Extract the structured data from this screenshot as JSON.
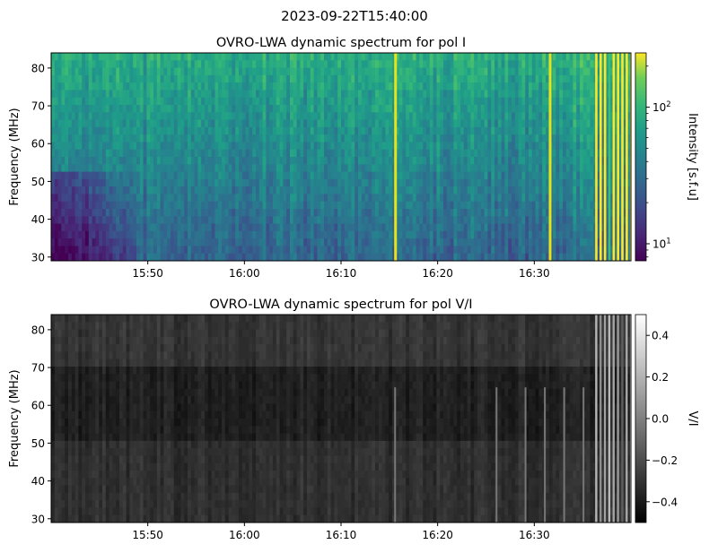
{
  "suptitle": "2023-09-22T15:40:00",
  "chart_data": [
    {
      "type": "heatmap",
      "title": "OVRO-LWA dynamic spectrum for pol I",
      "ylabel": "Frequency (MHz)",
      "xlabel": "",
      "x_ticks": [
        "15:50",
        "16:00",
        "16:10",
        "16:20",
        "16:30"
      ],
      "x_tick_minutes": [
        10,
        20,
        30,
        40,
        50
      ],
      "xlim_minutes_after_1540": [
        0,
        60
      ],
      "y_ticks": [
        30,
        40,
        50,
        60,
        70,
        80
      ],
      "ylim": [
        29,
        84
      ],
      "colormap": "viridis",
      "colorbar": {
        "label": "Intensity [s.f.u]",
        "scale": "log",
        "range": [
          7.5,
          250
        ],
        "ticks": [
          10,
          100
        ],
        "tick_mantissa": "10",
        "tick_exponents": [
          "1",
          "2"
        ]
      },
      "features": {
        "bright_bursts_minutes": [
          35.5,
          51.5
        ],
        "bursts_window_minutes": [
          56.3,
          60
        ],
        "low_intensity_region": "lower-left, around 15:42-15:49 below 50 MHz"
      }
    },
    {
      "type": "heatmap",
      "title": "OVRO-LWA dynamic spectrum for pol V/I",
      "ylabel": "Frequency (MHz)",
      "xlabel": "",
      "x_ticks": [
        "15:50",
        "16:00",
        "16:10",
        "16:20",
        "16:30"
      ],
      "x_tick_minutes": [
        10,
        20,
        30,
        40,
        50
      ],
      "xlim_minutes_after_1540": [
        0,
        60
      ],
      "y_ticks": [
        30,
        40,
        50,
        60,
        70,
        80
      ],
      "ylim": [
        29,
        84
      ],
      "colormap": "gray",
      "colorbar": {
        "label": "V/I",
        "scale": "linear",
        "range": [
          -0.5,
          0.5
        ],
        "ticks": [
          -0.4,
          -0.2,
          0.0,
          0.2,
          0.4
        ],
        "tick_labels": [
          "−0.4",
          "−0.2",
          "0.0",
          "0.2",
          "0.4"
        ]
      }
    }
  ]
}
